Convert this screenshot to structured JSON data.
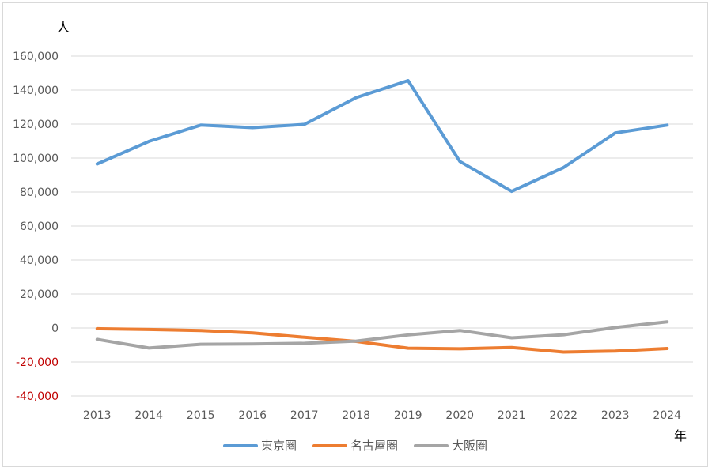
{
  "chart_data": {
    "type": "line",
    "title": "",
    "ylabel": "人",
    "xlabel": "年",
    "categories": [
      "2013",
      "2014",
      "2015",
      "2016",
      "2017",
      "2018",
      "2019",
      "2020",
      "2021",
      "2022",
      "2023",
      "2024"
    ],
    "ylim": [
      -40000,
      160000
    ],
    "yticks": [
      -40000,
      -20000,
      0,
      20000,
      40000,
      60000,
      80000,
      100000,
      120000,
      140000,
      160000
    ],
    "ytick_labels": [
      "-40,000",
      "-20,000",
      "0",
      "20,000",
      "40,000",
      "60,000",
      "80,000",
      "100,000",
      "120,000",
      "140,000",
      "160,000"
    ],
    "grid": true,
    "legend_position": "bottom",
    "negative_tick_color": "#c00000",
    "tick_color": "#595959",
    "series": [
      {
        "name": "東京圏",
        "color": "#5b9bd5",
        "values": [
          96500,
          109800,
          119400,
          117900,
          119800,
          135600,
          145600,
          98000,
          80400,
          94400,
          114800,
          119400
        ]
      },
      {
        "name": "名古屋圏",
        "color": "#ed7d31",
        "values": [
          -400,
          -900,
          -1500,
          -2900,
          -5500,
          -7900,
          -11900,
          -12300,
          -11500,
          -14200,
          -13600,
          -12100
        ]
      },
      {
        "name": "大阪圏",
        "color": "#a5a5a5",
        "values": [
          -6700,
          -11800,
          -9600,
          -9400,
          -9000,
          -7700,
          -4100,
          -1500,
          -5800,
          -4000,
          300,
          3600
        ]
      }
    ]
  }
}
